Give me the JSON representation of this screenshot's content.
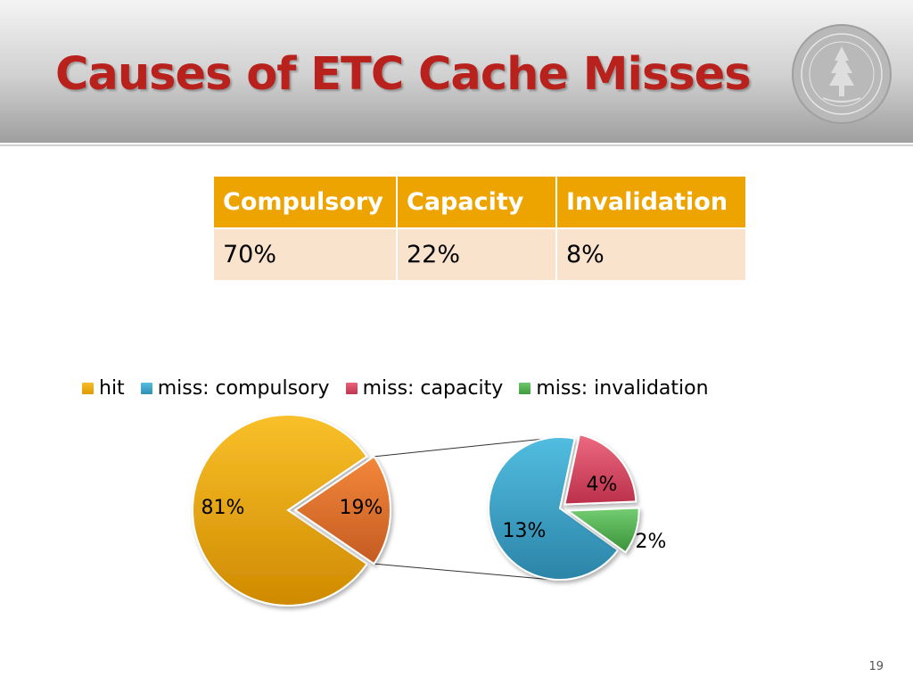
{
  "slide": {
    "title": "Causes of ETC Cache Misses",
    "page_number": "19"
  },
  "table": {
    "headers": [
      "Compulsory",
      "Capacity",
      "Invalidation"
    ],
    "values": [
      "70%",
      "22%",
      "8%"
    ]
  },
  "colors": {
    "title": "#b8211c",
    "table_header": "#eea400",
    "table_row": "#fae3cd",
    "hit": "#f2a900",
    "miss_total": "#e8782c",
    "miss_compulsory": "#3aa6c8",
    "miss_capacity": "#d9475f",
    "miss_invalidation": "#4fb24e"
  },
  "chart_data": {
    "type": "pie",
    "subtype": "pie-of-pie",
    "legend": [
      "hit",
      "miss: compulsory",
      "miss: capacity",
      "miss: invalidation"
    ],
    "legend_position": "top",
    "main_pie": {
      "slices": [
        {
          "name": "hit",
          "value": 81,
          "label": "81%"
        },
        {
          "name": "miss",
          "value": 19,
          "label": "19%"
        }
      ]
    },
    "secondary_pie": {
      "slices": [
        {
          "name": "miss: compulsory",
          "value": 13,
          "label": "13%"
        },
        {
          "name": "miss: capacity",
          "value": 4,
          "label": "4%"
        },
        {
          "name": "miss: invalidation",
          "value": 2,
          "label": "2%"
        }
      ]
    }
  }
}
